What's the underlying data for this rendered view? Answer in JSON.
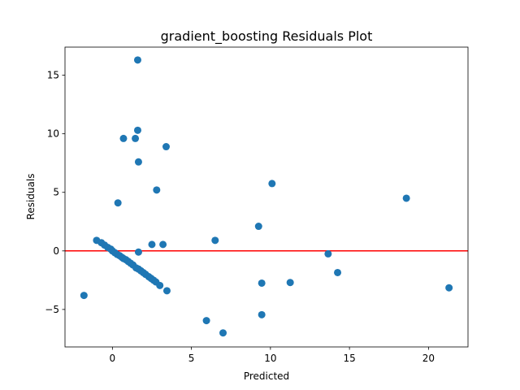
{
  "chart_data": {
    "type": "scatter",
    "title": "gradient_boosting Residuals Plot",
    "xlabel": "Predicted",
    "ylabel": "Residuals",
    "xlim": [
      -3.0,
      22.5
    ],
    "ylim": [
      -8.2,
      17.4
    ],
    "xticks": [
      0,
      5,
      10,
      15,
      20
    ],
    "yticks": [
      -5,
      0,
      5,
      10,
      15
    ],
    "grid": false,
    "colors": {
      "points": "#1f77b4",
      "zero_line": "#ff0000",
      "axes": "#000000"
    },
    "reference_line": {
      "y": 0
    },
    "points": [
      [
        -1.8,
        -3.8
      ],
      [
        -1.0,
        0.9
      ],
      [
        -0.7,
        0.7
      ],
      [
        -0.5,
        0.5
      ],
      [
        -0.3,
        0.3
      ],
      [
        -0.1,
        0.15
      ],
      [
        0.0,
        0.0
      ],
      [
        0.15,
        -0.15
      ],
      [
        0.3,
        -0.3
      ],
      [
        0.45,
        -0.4
      ],
      [
        0.6,
        -0.55
      ],
      [
        0.7,
        -0.65
      ],
      [
        0.85,
        -0.75
      ],
      [
        1.0,
        -0.9
      ],
      [
        1.15,
        -1.05
      ],
      [
        1.3,
        -1.2
      ],
      [
        1.5,
        -1.45
      ],
      [
        1.65,
        -1.55
      ],
      [
        1.8,
        -1.7
      ],
      [
        1.95,
        -1.85
      ],
      [
        2.1,
        -2.0
      ],
      [
        2.3,
        -2.2
      ],
      [
        2.45,
        -2.35
      ],
      [
        2.6,
        -2.5
      ],
      [
        2.75,
        -2.65
      ],
      [
        3.0,
        -2.95
      ],
      [
        3.45,
        -3.4
      ],
      [
        0.35,
        4.1
      ],
      [
        0.7,
        9.6
      ],
      [
        1.45,
        9.6
      ],
      [
        1.6,
        10.3
      ],
      [
        1.6,
        16.3
      ],
      [
        1.65,
        7.6
      ],
      [
        1.65,
        -0.1
      ],
      [
        2.5,
        0.55
      ],
      [
        2.8,
        5.2
      ],
      [
        3.2,
        0.55
      ],
      [
        3.4,
        8.9
      ],
      [
        5.95,
        -5.95
      ],
      [
        6.5,
        0.9
      ],
      [
        7.0,
        -7.0
      ],
      [
        9.25,
        2.1
      ],
      [
        9.45,
        -2.75
      ],
      [
        9.45,
        -5.45
      ],
      [
        10.1,
        5.75
      ],
      [
        11.25,
        -2.7
      ],
      [
        13.65,
        -0.25
      ],
      [
        14.25,
        -1.85
      ],
      [
        18.6,
        4.5
      ],
      [
        21.3,
        -3.15
      ]
    ]
  }
}
